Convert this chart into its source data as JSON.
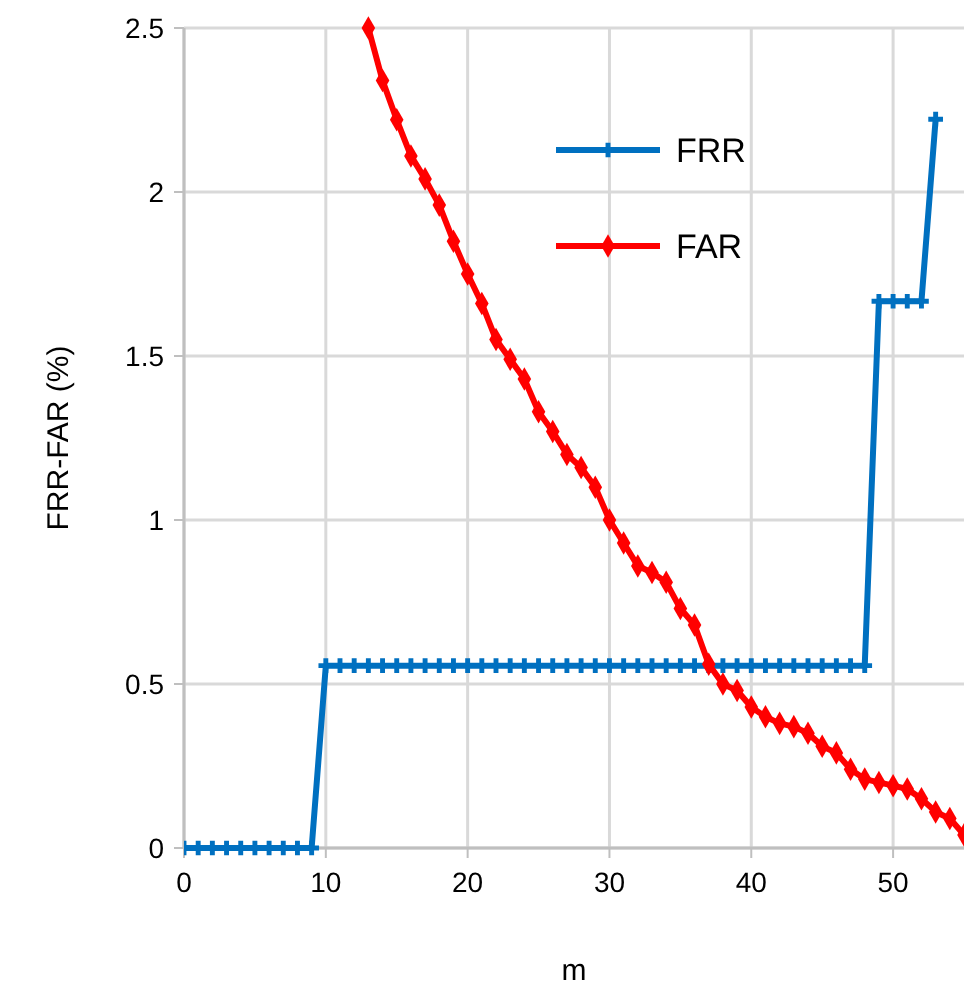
{
  "chart_data": {
    "type": "line",
    "xlabel": "m",
    "ylabel": "FRR-FAR (%)",
    "xlim": [
      0,
      55
    ],
    "xticks": [
      0,
      10,
      20,
      30,
      40,
      50
    ],
    "ylim": [
      0,
      2.5
    ],
    "yticks": [
      0,
      0.5,
      1,
      1.5,
      2,
      2.5
    ],
    "grid": true,
    "legend": "top right",
    "line_style": "solid",
    "series": [
      {
        "name": "FRR",
        "color": "#0070c0",
        "marker": "cross",
        "x": [
          0,
          1,
          2,
          3,
          4,
          5,
          6,
          7,
          8,
          9,
          10,
          11,
          12,
          13,
          14,
          15,
          16,
          17,
          18,
          19,
          20,
          21,
          22,
          23,
          24,
          25,
          26,
          27,
          28,
          29,
          30,
          31,
          32,
          33,
          34,
          35,
          36,
          37,
          38,
          39,
          40,
          41,
          42,
          43,
          44,
          45,
          46,
          47,
          48,
          49,
          50,
          51,
          52,
          53
        ],
        "values": [
          0,
          0,
          0,
          0,
          0,
          0,
          0,
          0,
          0,
          0,
          0.556,
          0.556,
          0.556,
          0.556,
          0.556,
          0.556,
          0.556,
          0.556,
          0.556,
          0.556,
          0.556,
          0.556,
          0.556,
          0.556,
          0.556,
          0.556,
          0.556,
          0.556,
          0.556,
          0.556,
          0.556,
          0.556,
          0.556,
          0.556,
          0.556,
          0.556,
          0.556,
          0.556,
          0.556,
          0.556,
          0.556,
          0.556,
          0.556,
          0.556,
          0.556,
          0.556,
          0.556,
          0.556,
          0.556,
          1.667,
          1.667,
          1.667,
          1.667,
          2.222
        ]
      },
      {
        "name": "FAR",
        "color": "#ff0000",
        "marker": "diamond",
        "x": [
          13,
          14,
          15,
          16,
          17,
          18,
          19,
          20,
          21,
          22,
          23,
          24,
          25,
          26,
          27,
          28,
          29,
          30,
          31,
          32,
          33,
          34,
          35,
          36,
          37,
          38,
          39,
          40,
          41,
          42,
          43,
          44,
          45,
          46,
          47,
          48,
          49,
          50,
          51,
          52,
          53,
          54,
          55
        ],
        "values": [
          2.5,
          2.34,
          2.22,
          2.11,
          2.04,
          1.96,
          1.85,
          1.75,
          1.66,
          1.55,
          1.49,
          1.43,
          1.33,
          1.27,
          1.2,
          1.16,
          1.1,
          1.0,
          0.93,
          0.86,
          0.84,
          0.81,
          0.73,
          0.68,
          0.56,
          0.5,
          0.48,
          0.43,
          0.4,
          0.38,
          0.37,
          0.35,
          0.31,
          0.29,
          0.24,
          0.21,
          0.2,
          0.19,
          0.18,
          0.15,
          0.11,
          0.09,
          0.04
        ]
      }
    ]
  }
}
